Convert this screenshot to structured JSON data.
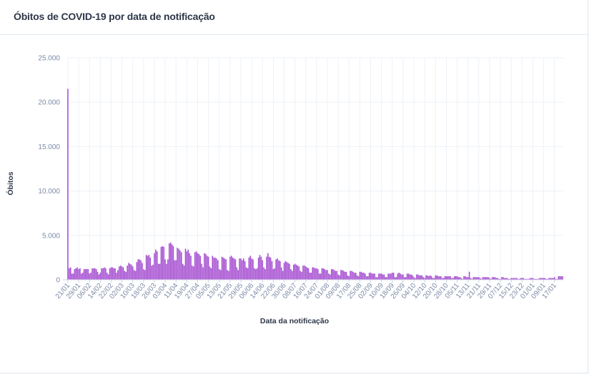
{
  "card": {
    "title": "Óbitos de COVID-19 por data de notificação"
  },
  "colors": {
    "bar": "#a64fd1",
    "grid": "#edf1f7",
    "tick_text": "#7b8aa6",
    "title_text": "#2d3748"
  },
  "chart_data": {
    "type": "bar",
    "title": "Óbitos de COVID-19 por data de notificação",
    "xlabel": "Data da notificação",
    "ylabel": "Óbitos",
    "ylim": [
      0,
      25000
    ],
    "yticks": [
      0,
      5000,
      10000,
      15000,
      20000,
      25000
    ],
    "ytick_labels": [
      "0",
      "5.000",
      "10.000",
      "15.000",
      "20.000",
      "25.000"
    ],
    "grid": true,
    "legend": "none",
    "xtick_labels": [
      "21/01",
      "29/01",
      "06/02",
      "14/02",
      "22/02",
      "02/03",
      "10/03",
      "18/03",
      "26/03",
      "03/04",
      "11/04",
      "19/04",
      "27/04",
      "05/05",
      "13/05",
      "21/05",
      "29/05",
      "06/06",
      "14/06",
      "22/06",
      "30/06",
      "08/07",
      "16/07",
      "24/07",
      "01/08",
      "09/08",
      "17/08",
      "25/08",
      "02/09",
      "10/09",
      "18/09",
      "26/09",
      "04/10",
      "12/10",
      "20/10",
      "28/10",
      "05/11",
      "13/11",
      "21/11",
      "29/11",
      "07/12",
      "15/12",
      "23/12",
      "01/01",
      "09/01",
      "17/01"
    ],
    "xtick_interval_days": 8,
    "start_date": "21/01",
    "values": [
      21500,
      1300,
      1400,
      700,
      700,
      1200,
      1300,
      1400,
      1200,
      1300,
      700,
      800,
      1200,
      1200,
      1200,
      1200,
      700,
      800,
      1300,
      1300,
      1300,
      1200,
      900,
      600,
      800,
      1300,
      1300,
      1400,
      1300,
      800,
      600,
      1300,
      1400,
      1400,
      1300,
      1300,
      800,
      1100,
      1500,
      1600,
      1500,
      1400,
      1000,
      900,
      1600,
      1900,
      1800,
      1700,
      1500,
      1100,
      1000,
      2000,
      2300,
      2300,
      2200,
      1900,
      1200,
      1100,
      2800,
      2700,
      2800,
      2500,
      1600,
      1700,
      3000,
      3400,
      3200,
      1800,
      1800,
      3700,
      3800,
      3700,
      2300,
      1800,
      2300,
      4100,
      4200,
      4000,
      3800,
      2200,
      2200,
      3600,
      3500,
      3300,
      3100,
      1800,
      1600,
      3500,
      3200,
      3400,
      3000,
      2700,
      1600,
      1500,
      3100,
      3200,
      3000,
      2900,
      2700,
      1800,
      1400,
      3000,
      2900,
      2700,
      2600,
      1500,
      1300,
      2700,
      2500,
      2500,
      2400,
      2200,
      1200,
      1100,
      2600,
      2500,
      2400,
      2300,
      1100,
      1000,
      2600,
      2700,
      2500,
      2400,
      2300,
      1400,
      1100,
      2400,
      2400,
      2200,
      2400,
      2100,
      1400,
      1300,
      2500,
      2700,
      2400,
      2300,
      1300,
      1200,
      1300,
      2500,
      2800,
      2600,
      2200,
      1400,
      1200,
      2600,
      3000,
      2600,
      2500,
      2100,
      1200,
      1300,
      2300,
      2400,
      2200,
      2100,
      1400,
      1000,
      1900,
      2100,
      2000,
      1900,
      1800,
      1200,
      1000,
      1700,
      1800,
      1700,
      1600,
      1500,
      1000,
      900,
      1600,
      1600,
      1500,
      1400,
      1300,
      800,
      800,
      1400,
      1400,
      1300,
      1300,
      1200,
      700,
      700,
      1300,
      1300,
      1200,
      1100,
      1100,
      700,
      600,
      1200,
      1200,
      1100,
      1000,
      1000,
      600,
      500,
      1100,
      1100,
      1000,
      900,
      900,
      500,
      400,
      1000,
      1000,
      900,
      800,
      800,
      500,
      400,
      900,
      900,
      800,
      800,
      700,
      400,
      400,
      800,
      800,
      700,
      700,
      700,
      300,
      300,
      700,
      700,
      700,
      600,
      600,
      300,
      300,
      700,
      700,
      700,
      800,
      800,
      300,
      300,
      700,
      800,
      700,
      600,
      600,
      300,
      300,
      700,
      700,
      600,
      600,
      500,
      300,
      200,
      600,
      600,
      500,
      500,
      500,
      300,
      200,
      500,
      500,
      400,
      500,
      400,
      200,
      200,
      500,
      500,
      400,
      400,
      400,
      200,
      200,
      400,
      400,
      400,
      400,
      400,
      200,
      200,
      400,
      400,
      400,
      300,
      300,
      200,
      100,
      400,
      400,
      300,
      300,
      900,
      200,
      100,
      300,
      300,
      300,
      300,
      300,
      200,
      100,
      300,
      300,
      300,
      300,
      300,
      200,
      100,
      300,
      300,
      300,
      200,
      200,
      100,
      100,
      300,
      300,
      200,
      200,
      200,
      100,
      100,
      200,
      200,
      200,
      200,
      200,
      100,
      100,
      200,
      200,
      200,
      100,
      100,
      100,
      100,
      200,
      200,
      200,
      100,
      100,
      100,
      100,
      200,
      200,
      200,
      200,
      200,
      100,
      100,
      200,
      200,
      200,
      200,
      300,
      100,
      100,
      400,
      400,
      400,
      400
    ]
  }
}
